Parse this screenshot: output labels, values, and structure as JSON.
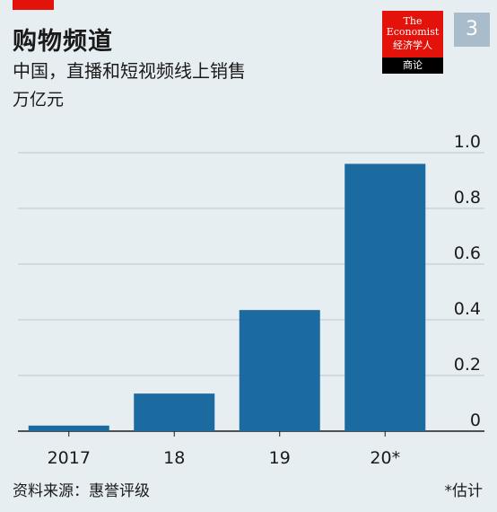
{
  "header": {
    "title": "购物频道",
    "subtitle": "中国，直播和短视频线上销售",
    "unit": "万亿元",
    "badge": "3"
  },
  "logo": {
    "line1": "The",
    "line2": "Economist",
    "line3": "经济学人",
    "line4": "商论"
  },
  "footer": {
    "source": "资料来源：惠誉评级",
    "note": "*估计"
  },
  "colors": {
    "bar": "#1b6aa0",
    "accent": "#e3120b",
    "background": "#e7eef2",
    "grid": "#b8c7d3"
  },
  "chart_data": {
    "type": "bar",
    "categories": [
      "2017",
      "18",
      "19",
      "20*"
    ],
    "values": [
      0.02,
      0.135,
      0.435,
      0.96
    ],
    "ylim": [
      0,
      1.0
    ],
    "yticks": [
      "0",
      "0.2",
      "0.4",
      "0.6",
      "0.8",
      "1.0"
    ],
    "ytick_values": [
      0,
      0.2,
      0.4,
      0.6,
      0.8,
      1.0
    ],
    "grid": true
  }
}
